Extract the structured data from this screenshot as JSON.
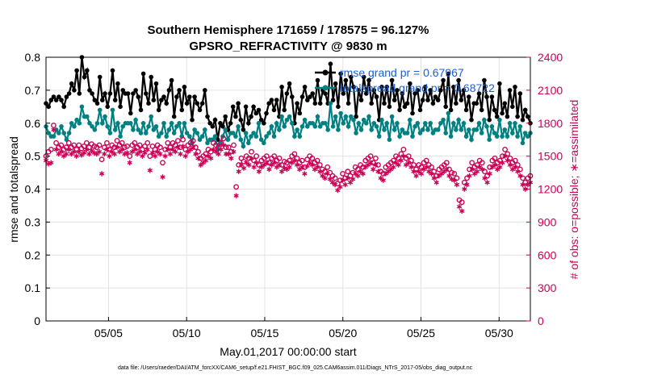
{
  "chart_data": {
    "type": "line",
    "title_line1": "Southern Hemisphere 171659 / 178575 = 96.127%",
    "title_line2": "GPSRO_REFRACTIVITY @ 9830 m",
    "xlabel": "May.01,2017 00:00:00 start",
    "ylabel_left": "rmse and totalspread",
    "ylabel_right": "# of obs: o=possible; ∗=assimilated",
    "footer": "data file: /Users/raeder/DAI/ATM_forcXX/CAM6_setup/f.e21.FHIST_BGC.f09_025.CAM6assim.011/Diags_NTrS_2017-05/obs_diag_output.nc",
    "xlim": [
      1,
      32
    ],
    "ylim_left": [
      0,
      0.8
    ],
    "ylim_right": [
      0,
      2400
    ],
    "grid": true,
    "legend_position": "top-right",
    "x_ticks": [
      5,
      10,
      15,
      20,
      25,
      30
    ],
    "x_tick_labels": [
      "05/05",
      "05/10",
      "05/15",
      "05/20",
      "05/25",
      "05/30"
    ],
    "y_left_ticks": [
      0,
      0.1,
      0.2,
      0.3,
      0.4,
      0.5,
      0.6,
      0.7,
      0.8
    ],
    "y_left_tick_labels": [
      "0",
      "0.1",
      "0.2",
      "0.3",
      "0.4",
      "0.5",
      "0.6",
      "0.7",
      "0.8"
    ],
    "y_right_ticks": [
      0,
      300,
      600,
      900,
      1200,
      1500,
      1800,
      2100,
      2400
    ],
    "y_right_tick_labels": [
      "0",
      "300",
      "600",
      "900",
      "1200",
      "1500",
      "1800",
      "2100",
      "2400"
    ],
    "series": [
      {
        "name": "rmse",
        "legend": "rmse grand pr = 0.67967",
        "axis": "left",
        "color": "#000000",
        "marker": "dot",
        "values": [
          0.66,
          0.65,
          0.67,
          0.68,
          0.67,
          0.68,
          0.67,
          0.65,
          0.68,
          0.69,
          0.72,
          0.7,
          0.76,
          0.69,
          0.8,
          0.74,
          0.76,
          0.7,
          0.69,
          0.67,
          0.66,
          0.74,
          0.67,
          0.69,
          0.65,
          0.69,
          0.76,
          0.67,
          0.72,
          0.65,
          0.7,
          0.69,
          0.69,
          0.63,
          0.69,
          0.7,
          0.68,
          0.64,
          0.75,
          0.69,
          0.66,
          0.74,
          0.67,
          0.72,
          0.64,
          0.67,
          0.68,
          0.66,
          0.7,
          0.73,
          0.62,
          0.68,
          0.7,
          0.64,
          0.71,
          0.66,
          0.68,
          0.61,
          0.68,
          0.66,
          0.64,
          0.66,
          0.7,
          0.62,
          0.6,
          0.59,
          0.61,
          0.55,
          0.6,
          0.59,
          0.62,
          0.58,
          0.6,
          0.65,
          0.62,
          0.66,
          0.61,
          0.58,
          0.65,
          0.6,
          0.62,
          0.65,
          0.63,
          0.64,
          0.61,
          0.6,
          0.63,
          0.66,
          0.67,
          0.64,
          0.67,
          0.62,
          0.71,
          0.64,
          0.69,
          0.72,
          0.68,
          0.6,
          0.66,
          0.63,
          0.68,
          0.71,
          0.67,
          0.68,
          0.69,
          0.66,
          0.73,
          0.66,
          0.7,
          0.69,
          0.66,
          0.78,
          0.67,
          0.72,
          0.65,
          0.75,
          0.69,
          0.73,
          0.66,
          0.74,
          0.71,
          0.62,
          0.7,
          0.67,
          0.74,
          0.69,
          0.73,
          0.66,
          0.7,
          0.68,
          0.61,
          0.71,
          0.66,
          0.71,
          0.65,
          0.73,
          0.67,
          0.7,
          0.64,
          0.69,
          0.65,
          0.66,
          0.72,
          0.63,
          0.69,
          0.7,
          0.64,
          0.67,
          0.71,
          0.67,
          0.7,
          0.66,
          0.68,
          0.67,
          0.7,
          0.73,
          0.65,
          0.75,
          0.64,
          0.71,
          0.66,
          0.73,
          0.67,
          0.7,
          0.64,
          0.68,
          0.61,
          0.66,
          0.66,
          0.69,
          0.64,
          0.73,
          0.68,
          0.61,
          0.68,
          0.64,
          0.62,
          0.72,
          0.63,
          0.66,
          0.62,
          0.7,
          0.65,
          0.71,
          0.62,
          0.69,
          0.61,
          0.64,
          0.62,
          0.6
        ]
      },
      {
        "name": "totalspread",
        "legend": "totalspread grand pr = 0.68722",
        "axis": "left",
        "color": "#008080",
        "marker": "dot",
        "values": [
          0.59,
          0.57,
          0.56,
          0.56,
          0.58,
          0.57,
          0.59,
          0.57,
          0.55,
          0.57,
          0.6,
          0.59,
          0.61,
          0.6,
          0.65,
          0.62,
          0.62,
          0.6,
          0.59,
          0.58,
          0.6,
          0.64,
          0.6,
          0.62,
          0.59,
          0.57,
          0.64,
          0.58,
          0.6,
          0.56,
          0.59,
          0.6,
          0.6,
          0.6,
          0.58,
          0.61,
          0.58,
          0.57,
          0.6,
          0.57,
          0.59,
          0.62,
          0.58,
          0.59,
          0.56,
          0.57,
          0.6,
          0.56,
          0.58,
          0.6,
          0.57,
          0.59,
          0.6,
          0.56,
          0.6,
          0.57,
          0.56,
          0.54,
          0.58,
          0.57,
          0.55,
          0.56,
          0.58,
          0.54,
          0.55,
          0.55,
          0.56,
          0.52,
          0.54,
          0.56,
          0.58,
          0.55,
          0.57,
          0.57,
          0.56,
          0.59,
          0.55,
          0.53,
          0.57,
          0.54,
          0.56,
          0.57,
          0.56,
          0.6,
          0.55,
          0.54,
          0.56,
          0.57,
          0.59,
          0.56,
          0.6,
          0.58,
          0.62,
          0.59,
          0.61,
          0.62,
          0.6,
          0.56,
          0.58,
          0.56,
          0.59,
          0.61,
          0.59,
          0.6,
          0.6,
          0.59,
          0.62,
          0.59,
          0.6,
          0.6,
          0.58,
          0.66,
          0.59,
          0.62,
          0.58,
          0.63,
          0.6,
          0.62,
          0.59,
          0.62,
          0.61,
          0.57,
          0.6,
          0.58,
          0.61,
          0.6,
          0.62,
          0.58,
          0.6,
          0.59,
          0.56,
          0.61,
          0.58,
          0.6,
          0.55,
          0.62,
          0.58,
          0.6,
          0.56,
          0.58,
          0.57,
          0.57,
          0.61,
          0.56,
          0.59,
          0.6,
          0.57,
          0.58,
          0.6,
          0.58,
          0.6,
          0.57,
          0.58,
          0.58,
          0.6,
          0.61,
          0.57,
          0.63,
          0.56,
          0.6,
          0.58,
          0.61,
          0.58,
          0.6,
          0.56,
          0.58,
          0.55,
          0.58,
          0.58,
          0.6,
          0.57,
          0.61,
          0.59,
          0.55,
          0.59,
          0.57,
          0.56,
          0.61,
          0.56,
          0.58,
          0.56,
          0.6,
          0.57,
          0.6,
          0.56,
          0.59,
          0.54,
          0.57,
          0.56,
          0.57
        ]
      },
      {
        "name": "possible",
        "axis": "right",
        "color": "#cc0055",
        "marker": "circle",
        "values": [
          1500,
          1540,
          1560,
          1780,
          1620,
          1580,
          1600,
          1560,
          1580,
          1620,
          1580,
          1600,
          1560,
          1600,
          1570,
          1590,
          1620,
          1580,
          1610,
          1590,
          1580,
          1600,
          1470,
          1580,
          1620,
          1560,
          1600,
          1580,
          1640,
          1600,
          1620,
          1580,
          1590,
          1500,
          1600,
          1620,
          1580,
          1600,
          1560,
          1590,
          1620,
          1500,
          1590,
          1560,
          1600,
          1580,
          1440,
          1560,
          1620,
          1580,
          1620,
          1600,
          1640,
          1580,
          1650,
          1560,
          1600,
          1620,
          1640,
          1580,
          1540,
          1480,
          1500,
          1520,
          1560,
          1540,
          1620,
          1600,
          1580,
          1620,
          1660,
          1580,
          1580,
          1540,
          1600,
          1220,
          1420,
          1480,
          1450,
          1500,
          1480,
          1540,
          1460,
          1500,
          1420,
          1460,
          1480,
          1500,
          1440,
          1480,
          1500,
          1460,
          1480,
          1420,
          1450,
          1440,
          1460,
          1500,
          1520,
          1480,
          1440,
          1460,
          1400,
          1470,
          1500,
          1480,
          1440,
          1460,
          1420,
          1380,
          1360,
          1400,
          1350,
          1320,
          1300,
          1250,
          1280,
          1340,
          1300,
          1360,
          1320,
          1350,
          1400,
          1380,
          1420,
          1400,
          1460,
          1480,
          1500,
          1440,
          1480,
          1420,
          1360,
          1340,
          1400,
          1420,
          1440,
          1460,
          1500,
          1480,
          1520,
          1560,
          1480,
          1500,
          1460,
          1420,
          1380,
          1420,
          1400,
          1440,
          1460,
          1420,
          1400,
          1360,
          1320,
          1380,
          1400,
          1420,
          1440,
          1380,
          1350,
          1340,
          1300,
          1100,
          1080,
          1260,
          1300,
          1380,
          1440,
          1400,
          1420,
          1460,
          1440,
          1360,
          1320,
          1400,
          1460,
          1480,
          1440,
          1460,
          1500,
          1560,
          1520,
          1480,
          1440,
          1460,
          1420,
          1380,
          1300,
          1260,
          1300,
          1320
        ]
      },
      {
        "name": "assimilated",
        "axis": "right",
        "color": "#cc0055",
        "marker": "asterisk",
        "values": [
          1460,
          1430,
          1440,
          1740,
          1560,
          1520,
          1540,
          1500,
          1520,
          1560,
          1520,
          1540,
          1500,
          1540,
          1510,
          1530,
          1560,
          1520,
          1550,
          1530,
          1520,
          1540,
          1340,
          1520,
          1560,
          1500,
          1540,
          1520,
          1580,
          1540,
          1560,
          1520,
          1530,
          1440,
          1540,
          1560,
          1520,
          1540,
          1500,
          1530,
          1560,
          1370,
          1530,
          1500,
          1540,
          1520,
          1310,
          1500,
          1560,
          1520,
          1560,
          1540,
          1580,
          1520,
          1590,
          1500,
          1540,
          1560,
          1580,
          1520,
          1480,
          1420,
          1440,
          1460,
          1500,
          1480,
          1560,
          1540,
          1520,
          1560,
          1600,
          1520,
          1520,
          1480,
          1540,
          1140,
          1360,
          1420,
          1390,
          1440,
          1420,
          1480,
          1400,
          1440,
          1360,
          1400,
          1420,
          1440,
          1380,
          1420,
          1440,
          1400,
          1420,
          1360,
          1390,
          1380,
          1400,
          1440,
          1460,
          1420,
          1380,
          1400,
          1340,
          1410,
          1440,
          1420,
          1380,
          1400,
          1360,
          1320,
          1300,
          1340,
          1290,
          1260,
          1240,
          1190,
          1220,
          1280,
          1240,
          1300,
          1260,
          1290,
          1340,
          1320,
          1360,
          1340,
          1400,
          1420,
          1440,
          1380,
          1420,
          1360,
          1300,
          1280,
          1340,
          1360,
          1380,
          1400,
          1440,
          1420,
          1460,
          1500,
          1420,
          1440,
          1400,
          1360,
          1320,
          1360,
          1340,
          1380,
          1400,
          1360,
          1340,
          1300,
          1260,
          1320,
          1340,
          1360,
          1380,
          1320,
          1290,
          1280,
          1240,
          1040,
          1000,
          1200,
          1240,
          1320,
          1380,
          1340,
          1360,
          1400,
          1380,
          1300,
          1260,
          1340,
          1400,
          1420,
          1380,
          1400,
          1440,
          1500,
          1460,
          1420,
          1380,
          1400,
          1360,
          1320,
          1240,
          1200,
          1240,
          1260
        ]
      }
    ]
  }
}
